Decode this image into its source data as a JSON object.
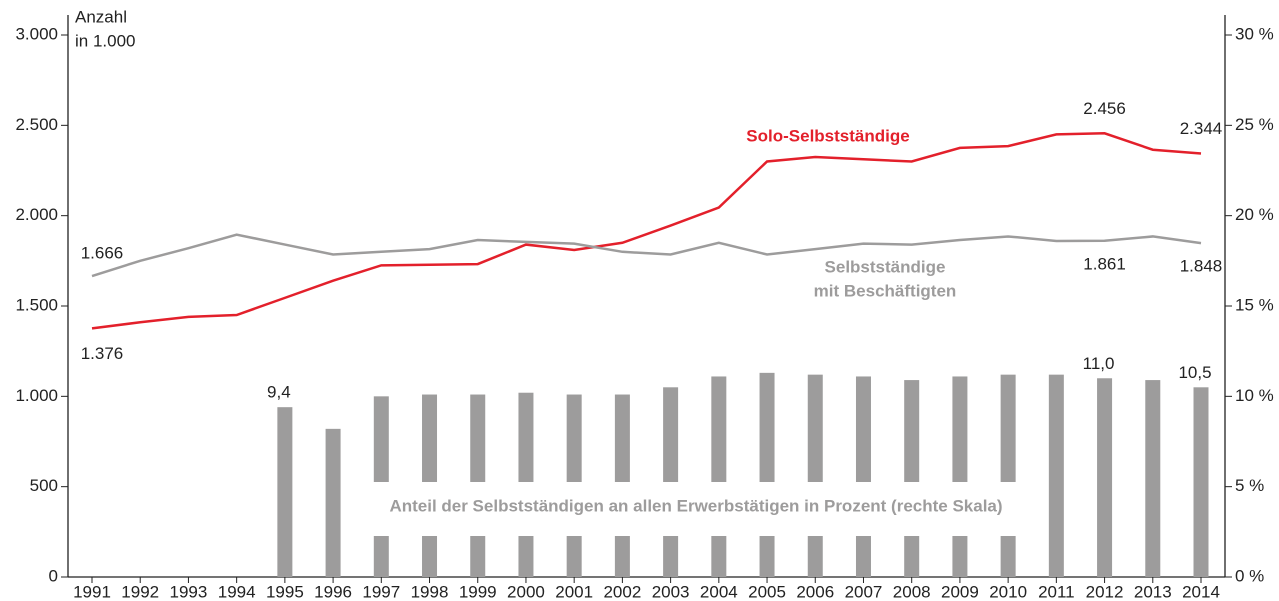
{
  "chart_data": {
    "type": "line",
    "y_axis_label": [
      "Anzahl",
      "in 1.000"
    ],
    "categories": [
      "1991",
      "1992",
      "1993",
      "1994",
      "1995",
      "1996",
      "1997",
      "1998",
      "1999",
      "2000",
      "2001",
      "2002",
      "2003",
      "2004",
      "2005",
      "2006",
      "2007",
      "2008",
      "2009",
      "2010",
      "2011",
      "2012",
      "2013",
      "2014"
    ],
    "series": [
      {
        "name": "Solo-Selbstständige",
        "color": "#e3202b",
        "type": "line",
        "values": [
          1376,
          1410,
          1440,
          1450,
          1545,
          1640,
          1725,
          1728,
          1732,
          1840,
          1810,
          1850,
          1945,
          2045,
          2300,
          2325,
          2312,
          2300,
          2375,
          2385,
          2450,
          2456,
          2365,
          2344
        ],
        "value_labels": [
          "1.376",
          null,
          null,
          null,
          null,
          null,
          null,
          null,
          null,
          null,
          null,
          null,
          null,
          null,
          null,
          null,
          null,
          null,
          null,
          null,
          null,
          "2.456",
          null,
          "2.344"
        ]
      },
      {
        "name": [
          "Selbstständige",
          "mit Beschäftigten"
        ],
        "color": "#9d9c9c",
        "type": "line",
        "values": [
          1666,
          1750,
          1820,
          1895,
          1840,
          1785,
          1800,
          1815,
          1865,
          1855,
          1845,
          1800,
          1785,
          1850,
          1785,
          1815,
          1845,
          1840,
          1865,
          1885,
          1860,
          1861,
          1885,
          1848
        ],
        "value_labels": [
          "1.666",
          null,
          null,
          null,
          null,
          null,
          null,
          null,
          null,
          null,
          null,
          null,
          null,
          null,
          null,
          null,
          null,
          null,
          null,
          null,
          null,
          "1.861",
          null,
          "1.848"
        ]
      },
      {
        "name": "Anteil der Selbstständigen an allen Erwerbstätigen in Prozent (rechte Skala)",
        "color": "#9d9c9c",
        "type": "bar",
        "axis": "y2",
        "values": [
          null,
          null,
          null,
          null,
          9.4,
          8.2,
          10.0,
          10.1,
          10.1,
          10.2,
          10.1,
          10.1,
          10.5,
          11.1,
          11.3,
          11.2,
          11.1,
          10.9,
          11.1,
          11.2,
          11.2,
          11.0,
          10.9,
          10.5
        ],
        "value_labels": [
          null,
          null,
          null,
          null,
          "9,4",
          null,
          null,
          null,
          null,
          null,
          null,
          null,
          null,
          null,
          null,
          null,
          null,
          null,
          null,
          null,
          null,
          "11,0",
          null,
          "10,5"
        ]
      }
    ],
    "ylim": [
      0,
      3000
    ],
    "yticks": [
      0,
      500,
      {
        "value": 1000,
        "label": "1.000"
      },
      {
        "value": 1500,
        "label": "1.500"
      },
      {
        "value": 2000,
        "label": "2.000"
      },
      {
        "value": 2500,
        "label": "2.500"
      },
      {
        "value": 3000,
        "label": "3.000"
      }
    ],
    "y2lim": [
      0,
      30
    ],
    "y2ticks": [
      {
        "value": 0,
        "label": "0 %"
      },
      {
        "value": 5,
        "label": "5 %"
      },
      {
        "value": 10,
        "label": "10 %"
      },
      {
        "value": 15,
        "label": "15 %"
      },
      {
        "value": 20,
        "label": "20 %"
      },
      {
        "value": 25,
        "label": "25 %"
      },
      {
        "value": 30,
        "label": "30 %"
      }
    ]
  }
}
